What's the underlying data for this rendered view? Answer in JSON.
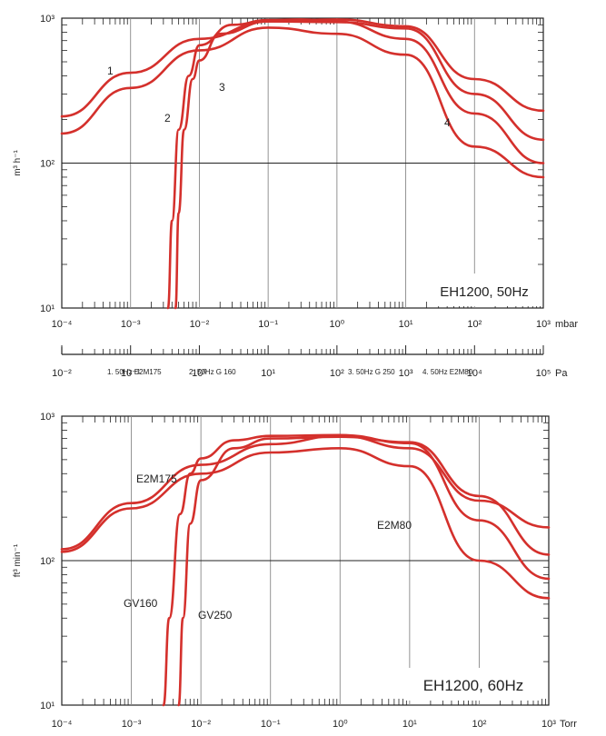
{
  "legend": [
    "1. 50Hz E2M175",
    "2. 50Hz G  160",
    "3. 50Hz G  250",
    "4. 50Hz E2M80"
  ],
  "chart_data": [
    {
      "type": "line",
      "title": "EH1200, 50Hz",
      "ylabel": "m³ h⁻¹",
      "yscale": "log",
      "ylim": [
        10,
        1000
      ],
      "x_axes": [
        {
          "unit": "mbar",
          "scale": "log",
          "range": [
            0.0001,
            1000
          ],
          "ticks": [
            "10⁻⁴",
            "10⁻³",
            "10⁻²",
            "10⁻¹",
            "10⁰",
            "10¹",
            "10²",
            "10³"
          ]
        },
        {
          "unit": "Pa",
          "scale": "log",
          "range": [
            0.01,
            100000
          ],
          "ticks": [
            "10⁻²",
            "10⁻¹",
            "10⁰",
            "10¹",
            "10²",
            "10³",
            "10⁴",
            "10⁵"
          ]
        }
      ],
      "y_ticks": [
        "10³",
        "10²",
        "10¹"
      ],
      "grid": "vertical decades, horizontal line at 10²",
      "series": [
        {
          "name": "1",
          "x": [
            0.0001,
            0.001,
            0.01,
            0.1,
            1,
            10,
            100,
            1000
          ],
          "y": [
            210,
            420,
            720,
            950,
            980,
            880,
            380,
            230
          ]
        },
        {
          "name": "2",
          "x": [
            0.0035,
            0.004,
            0.005,
            0.007,
            0.01,
            0.03,
            0.1,
            0.3,
            1,
            10,
            100,
            1000
          ],
          "y": [
            10,
            40,
            170,
            400,
            650,
            900,
            970,
            980,
            950,
            720,
            220,
            100
          ]
        },
        {
          "name": "3",
          "x": [
            0.0045,
            0.005,
            0.006,
            0.008,
            0.01,
            0.02,
            0.1,
            1,
            10,
            100,
            1000
          ],
          "y": [
            10,
            45,
            170,
            380,
            510,
            780,
            950,
            940,
            850,
            300,
            145
          ]
        },
        {
          "name": "4",
          "x": [
            0.0001,
            0.001,
            0.01,
            0.1,
            1,
            10,
            100,
            1000
          ],
          "y": [
            160,
            330,
            600,
            860,
            780,
            560,
            130,
            80
          ]
        }
      ],
      "series_labels": [
        "1",
        "2",
        "3",
        "4"
      ]
    },
    {
      "type": "line",
      "title": "EH1200, 60Hz",
      "ylabel": "ft³ min⁻¹",
      "xlabel": "Torr",
      "yscale": "log",
      "ylim": [
        10,
        1000
      ],
      "x_axis": {
        "unit": "Torr",
        "scale": "log",
        "range": [
          0.0001,
          1000
        ],
        "ticks": [
          "10⁻⁴",
          "10⁻³",
          "10⁻²",
          "10⁻¹",
          "10⁰",
          "10¹",
          "10²",
          "10³"
        ]
      },
      "y_ticks": [
        "10³",
        "10²",
        "10¹"
      ],
      "grid": "vertical decades, horizontal line at 10²",
      "series": [
        {
          "name": "E2M175",
          "x": [
            0.0001,
            0.001,
            0.01,
            0.1,
            1,
            10,
            100,
            1000
          ],
          "y": [
            120,
            250,
            460,
            640,
            730,
            600,
            260,
            170
          ]
        },
        {
          "name": "GV160",
          "x": [
            0.0029,
            0.0035,
            0.005,
            0.007,
            0.01,
            0.03,
            0.1,
            1,
            10,
            100,
            1000
          ],
          "y": [
            10,
            40,
            210,
            400,
            510,
            680,
            730,
            740,
            650,
            190,
            75
          ]
        },
        {
          "name": "GV250",
          "x": [
            0.0048,
            0.0055,
            0.007,
            0.01,
            0.03,
            0.1,
            1,
            10,
            100,
            1000
          ],
          "y": [
            10,
            40,
            180,
            360,
            600,
            700,
            720,
            660,
            280,
            110
          ]
        },
        {
          "name": "E2M80",
          "x": [
            0.0001,
            0.001,
            0.01,
            0.1,
            1,
            10,
            100,
            1000
          ],
          "y": [
            115,
            230,
            400,
            560,
            600,
            450,
            100,
            55
          ]
        }
      ]
    }
  ]
}
